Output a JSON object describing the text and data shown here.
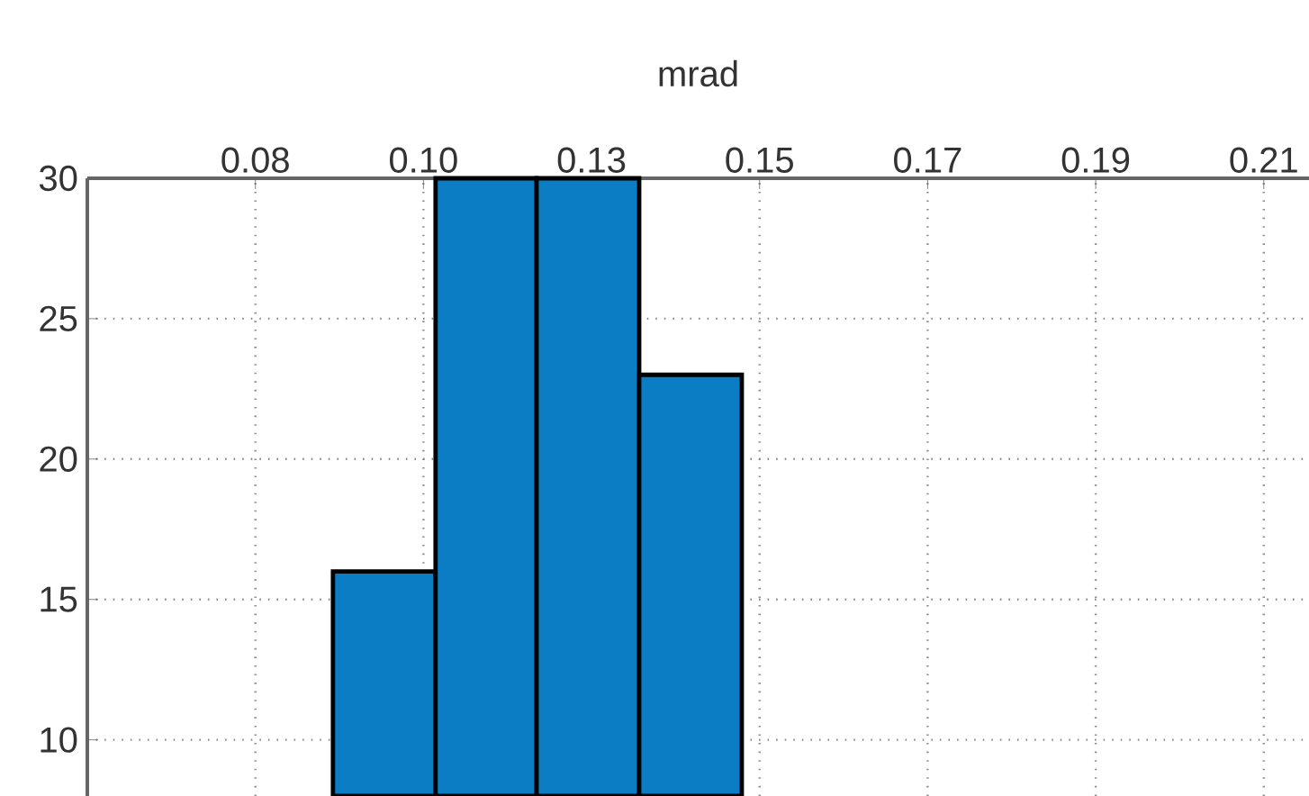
{
  "chart_data": {
    "type": "histogram",
    "xlabel": "mrad",
    "bins": [
      0.0931,
      0.1058,
      0.1183,
      0.131,
      0.1437
    ],
    "values": [
      16,
      30,
      30,
      23
    ],
    "color": "#0b7dc5",
    "xlim": [
      0.0627,
      0.2139
    ],
    "ylim": [
      8,
      30
    ],
    "xticks": [
      {
        "value": 0.0835,
        "label": "0.08"
      },
      {
        "value": 0.1043,
        "label": "0.10"
      },
      {
        "value": 0.1251,
        "label": "0.13"
      },
      {
        "value": 0.1459,
        "label": "0.15"
      },
      {
        "value": 0.1667,
        "label": "0.17"
      },
      {
        "value": 0.1875,
        "label": "0.19"
      },
      {
        "value": 0.2083,
        "label": "0.21"
      }
    ],
    "yticks": [
      10,
      15,
      20,
      25,
      30
    ],
    "grid": true
  }
}
